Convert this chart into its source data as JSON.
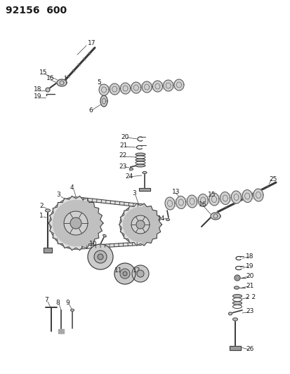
{
  "title": "92156  600",
  "bg_color": "#ffffff",
  "line_color": "#3a3a3a",
  "label_color": "#1a1a1a",
  "fig_width": 4.14,
  "fig_height": 5.33,
  "dpi": 100,
  "title_fontsize": 10,
  "label_fontsize": 6.5
}
